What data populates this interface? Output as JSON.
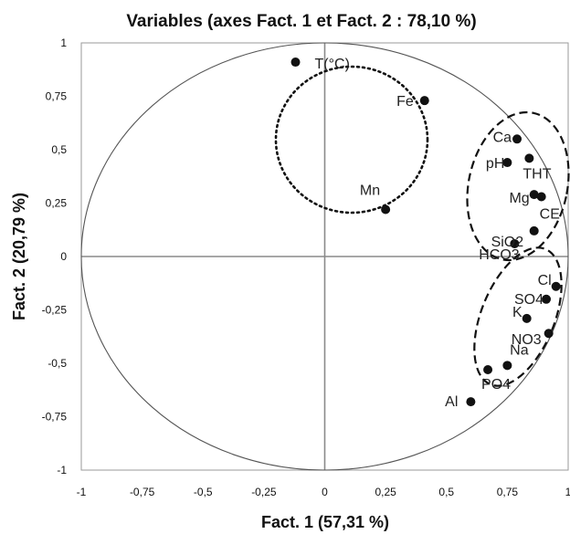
{
  "chart_data": {
    "type": "scatter",
    "title": "Variables (axes Fact. 1 et Fact. 2 : 78,10 %)",
    "xlabel": "Fact. 1 (57,31 %)",
    "ylabel": "Fact. 2 (20,79 %)",
    "xlim": [
      -1,
      1
    ],
    "ylim": [
      -1,
      1
    ],
    "x_ticks": [
      "-1",
      "-0,75",
      "-0,5",
      "-0,25",
      "0",
      "0,25",
      "0,5",
      "0,75",
      "1"
    ],
    "y_ticks": [
      "1",
      "0,75",
      "0,5",
      "0,25",
      "0",
      "-0,25",
      "-0,5",
      "-0,75",
      "-1"
    ],
    "grid": false,
    "correlation_circle": true,
    "points": [
      {
        "label": "T(°C)",
        "x": -0.12,
        "y": 0.91
      },
      {
        "label": "Fe",
        "x": 0.41,
        "y": 0.73
      },
      {
        "label": "Mn",
        "x": 0.25,
        "y": 0.22
      },
      {
        "label": "Ca",
        "x": 0.79,
        "y": 0.55
      },
      {
        "label": "pH",
        "x": 0.75,
        "y": 0.44
      },
      {
        "label": "THT",
        "x": 0.84,
        "y": 0.46
      },
      {
        "label": "Mg",
        "x": 0.86,
        "y": 0.29
      },
      {
        "label": "CE",
        "x": 0.89,
        "y": 0.28
      },
      {
        "label": "HCO3",
        "x": 0.86,
        "y": 0.12
      },
      {
        "label": "SiO2",
        "x": 0.78,
        "y": 0.06
      },
      {
        "label": "Cl",
        "x": 0.95,
        "y": -0.14
      },
      {
        "label": "SO4",
        "x": 0.91,
        "y": -0.2
      },
      {
        "label": "K",
        "x": 0.83,
        "y": -0.29
      },
      {
        "label": "NO3",
        "x": 0.92,
        "y": -0.36
      },
      {
        "label": "Na",
        "x": 0.75,
        "y": -0.51
      },
      {
        "label": "PO4",
        "x": 0.67,
        "y": -0.53
      },
      {
        "label": "Al",
        "x": 0.6,
        "y": -0.68
      }
    ],
    "groups": [
      {
        "style": "dotted",
        "members": [
          "T(°C)",
          "Fe",
          "Mn"
        ]
      },
      {
        "style": "dashed",
        "members": [
          "Ca",
          "pH",
          "THT",
          "Mg",
          "CE",
          "HCO3",
          "SiO2"
        ]
      },
      {
        "style": "dashed",
        "members": [
          "Cl",
          "SO4",
          "K",
          "NO3",
          "Na",
          "PO4"
        ]
      }
    ]
  }
}
